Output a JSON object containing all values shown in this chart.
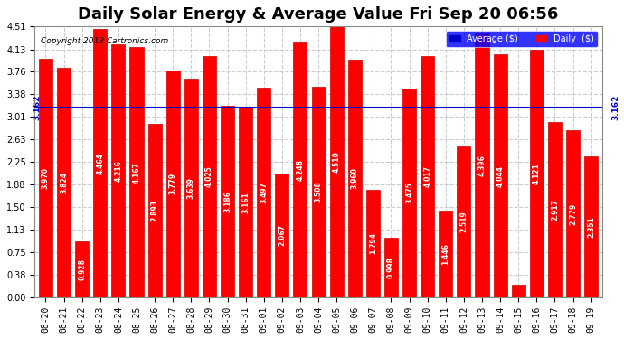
{
  "title": "Daily Solar Energy & Average Value Fri Sep 20 06:56",
  "copyright": "Copyright 2013 Cartronics.com",
  "average_value": 3.162,
  "average_label": "3.162",
  "categories": [
    "08-20",
    "08-21",
    "08-22",
    "08-23",
    "08-24",
    "08-25",
    "08-26",
    "08-27",
    "08-28",
    "08-29",
    "08-30",
    "08-31",
    "09-01",
    "09-02",
    "09-03",
    "09-04",
    "09-05",
    "09-06",
    "09-07",
    "09-08",
    "09-09",
    "09-10",
    "09-11",
    "09-12",
    "09-13",
    "09-14",
    "09-15",
    "09-16",
    "09-17",
    "09-18",
    "09-19"
  ],
  "values": [
    3.97,
    3.824,
    0.928,
    4.464,
    4.216,
    4.167,
    2.893,
    3.779,
    3.639,
    4.025,
    3.186,
    3.161,
    3.497,
    2.067,
    4.248,
    3.508,
    4.51,
    3.96,
    1.794,
    0.998,
    3.475,
    4.017,
    1.446,
    2.519,
    4.396,
    4.044,
    0.203,
    4.121,
    2.917,
    2.779,
    2.351
  ],
  "bar_color": "#ff0000",
  "bar_edge_color": "#cc0000",
  "avg_line_color": "#0000cc",
  "yticks": [
    0.0,
    0.38,
    0.75,
    1.13,
    1.5,
    1.88,
    2.25,
    2.63,
    3.01,
    3.38,
    3.76,
    4.13,
    4.51
  ],
  "ylim": [
    0,
    4.51
  ],
  "background_color": "#ffffff",
  "plot_bg_color": "#ffffff",
  "grid_color": "#cccccc",
  "title_fontsize": 13,
  "tick_fontsize": 7,
  "value_fontsize": 5.5,
  "legend_avg_color": "#0000cc",
  "legend_daily_color": "#ff0000"
}
